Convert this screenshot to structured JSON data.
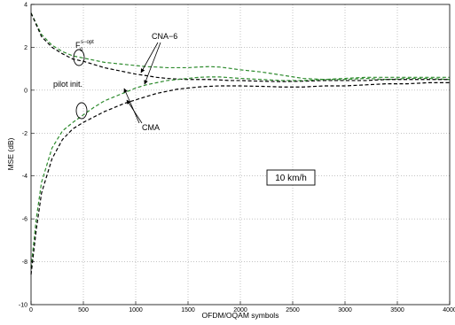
{
  "chart_data": {
    "type": "line",
    "title": "",
    "xlabel": "OFDM/OQAM symbols",
    "ylabel": "MSE (dB)",
    "xlim": [
      0,
      4000
    ],
    "ylim": [
      -10,
      4
    ],
    "xticks": [
      0,
      500,
      1000,
      1500,
      2000,
      2500,
      3000,
      3500,
      4000
    ],
    "yticks": [
      -10,
      -8,
      -6,
      -4,
      -2,
      0,
      2,
      4
    ],
    "grid": true,
    "line_style": "dashed",
    "series": [
      {
        "color": "#2e8b2e",
        "x": [
          0,
          100,
          200,
          300,
          400,
          500,
          600,
          700,
          800,
          900,
          1000,
          1100,
          1200,
          1300,
          1400,
          1500,
          1600,
          1700,
          1800,
          1900,
          2000,
          2200,
          2400,
          2600,
          2800,
          3000,
          3200,
          3400,
          3600,
          3800,
          4000
        ],
        "values": [
          3.6,
          2.6,
          2.1,
          1.8,
          1.6,
          1.5,
          1.4,
          1.3,
          1.25,
          1.2,
          1.15,
          1.1,
          1.08,
          1.05,
          1.05,
          1.05,
          1.08,
          1.1,
          1.08,
          1.02,
          0.95,
          0.85,
          0.7,
          0.55,
          0.5,
          0.5,
          0.55,
          0.5,
          0.55,
          0.55,
          0.5
        ]
      },
      {
        "color": "#000000",
        "x": [
          0,
          100,
          200,
          300,
          400,
          500,
          600,
          700,
          800,
          900,
          1000,
          1100,
          1200,
          1300,
          1400,
          1500,
          1600,
          1700,
          1800,
          1900,
          2000,
          2200,
          2400,
          2600,
          2800,
          3000,
          3200,
          3400,
          3600,
          3800,
          4000
        ],
        "values": [
          3.6,
          2.5,
          2.0,
          1.7,
          1.45,
          1.35,
          1.2,
          1.05,
          0.95,
          0.85,
          0.75,
          0.68,
          0.6,
          0.55,
          0.52,
          0.5,
          0.5,
          0.5,
          0.48,
          0.45,
          0.45,
          0.42,
          0.4,
          0.42,
          0.45,
          0.45,
          0.45,
          0.5,
          0.5,
          0.5,
          0.5
        ]
      },
      {
        "color": "#2e8b2e",
        "x": [
          0,
          50,
          100,
          200,
          300,
          400,
          500,
          600,
          700,
          800,
          900,
          1000,
          1100,
          1200,
          1300,
          1400,
          1500,
          1600,
          1700,
          1800,
          2000,
          2200,
          2400,
          2600,
          2800,
          3000,
          3200,
          3400,
          3600,
          3800,
          4000
        ],
        "values": [
          -8.3,
          -6.0,
          -4.3,
          -2.7,
          -1.9,
          -1.5,
          -1.15,
          -0.8,
          -0.5,
          -0.3,
          -0.1,
          0.1,
          0.25,
          0.35,
          0.45,
          0.5,
          0.55,
          0.6,
          0.62,
          0.62,
          0.55,
          0.5,
          0.45,
          0.45,
          0.5,
          0.55,
          0.6,
          0.6,
          0.6,
          0.6,
          0.6
        ]
      },
      {
        "color": "#000000",
        "x": [
          0,
          50,
          100,
          200,
          300,
          400,
          500,
          600,
          700,
          800,
          900,
          1000,
          1100,
          1200,
          1300,
          1400,
          1500,
          1600,
          1700,
          1800,
          2000,
          2200,
          2400,
          2600,
          2800,
          3000,
          3200,
          3400,
          3600,
          3800,
          4000
        ],
        "values": [
          -8.6,
          -6.5,
          -4.8,
          -3.2,
          -2.3,
          -1.8,
          -1.5,
          -1.25,
          -1.0,
          -0.8,
          -0.6,
          -0.45,
          -0.3,
          -0.15,
          -0.05,
          0.05,
          0.1,
          0.15,
          0.18,
          0.2,
          0.2,
          0.18,
          0.15,
          0.15,
          0.2,
          0.2,
          0.25,
          0.3,
          0.3,
          0.35,
          0.35
        ]
      }
    ],
    "annotations": {
      "f0_main": "F",
      "f0_sup": "s−opt",
      "f0_sub": "0",
      "cna6": "CNA−6",
      "pilot": "pilot init.",
      "cma": "CMA",
      "speed_box": "10 km/h"
    }
  }
}
